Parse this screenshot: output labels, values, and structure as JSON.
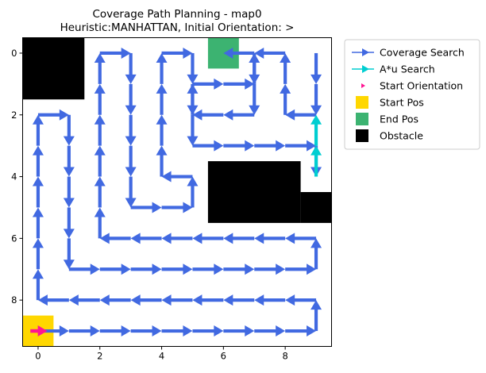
{
  "chart_data": {
    "type": "grid-path",
    "title": "Coverage Path Planning - map0",
    "subtitle": "Heuristic:MANHATTAN, Initial Orientation: >",
    "xlim": [
      -0.5,
      9.5
    ],
    "ylim": [
      9.5,
      -0.5
    ],
    "xticks": [
      0,
      2,
      4,
      6,
      8
    ],
    "yticks": [
      0,
      2,
      4,
      6,
      8
    ],
    "grid": false,
    "legend_position": "outside-right",
    "colors": {
      "coverage": "#4169E1",
      "astar": "#00CED1",
      "start_orientation": "#FF1493",
      "start_pos": "#FFD700",
      "end_pos": "#3CB371",
      "obstacle": "#000000"
    },
    "obstacles": [
      {
        "x0": -0.5,
        "y0": -0.5,
        "x1": 1.5,
        "y1": 1.5
      },
      {
        "x0": 5.5,
        "y0": 3.5,
        "x1": 8.5,
        "y1": 5.5
      },
      {
        "x0": 8.5,
        "y0": 4.5,
        "x1": 9.5,
        "y1": 5.5
      }
    ],
    "start_pos": [
      0,
      9
    ],
    "end_pos": [
      6,
      0
    ],
    "start_orientation": {
      "from": [
        -0.25,
        9
      ],
      "to": [
        0.3,
        9
      ]
    },
    "coverage_path": [
      [
        0,
        9
      ],
      [
        1,
        9
      ],
      [
        2,
        9
      ],
      [
        3,
        9
      ],
      [
        4,
        9
      ],
      [
        5,
        9
      ],
      [
        6,
        9
      ],
      [
        7,
        9
      ],
      [
        8,
        9
      ],
      [
        9,
        9
      ],
      [
        9,
        8
      ],
      [
        8,
        8
      ],
      [
        7,
        8
      ],
      [
        6,
        8
      ],
      [
        5,
        8
      ],
      [
        4,
        8
      ],
      [
        3,
        8
      ],
      [
        2,
        8
      ],
      [
        1,
        8
      ],
      [
        0,
        8
      ],
      [
        0,
        7
      ],
      [
        0,
        6
      ],
      [
        0,
        5
      ],
      [
        0,
        4
      ],
      [
        0,
        3
      ],
      [
        0,
        2
      ],
      [
        1,
        2
      ],
      [
        1,
        3
      ],
      [
        1,
        4
      ],
      [
        1,
        5
      ],
      [
        1,
        6
      ],
      [
        1,
        7
      ],
      [
        2,
        7
      ],
      [
        3,
        7
      ],
      [
        4,
        7
      ],
      [
        5,
        7
      ],
      [
        6,
        7
      ],
      [
        7,
        7
      ],
      [
        8,
        7
      ],
      [
        9,
        7
      ],
      [
        9,
        6
      ],
      [
        8,
        6
      ],
      [
        7,
        6
      ],
      [
        6,
        6
      ],
      [
        5,
        6
      ],
      [
        4,
        6
      ],
      [
        3,
        6
      ],
      [
        2,
        6
      ],
      [
        2,
        5
      ],
      [
        2,
        4
      ],
      [
        2,
        3
      ],
      [
        2,
        2
      ],
      [
        2,
        1
      ],
      [
        2,
        0
      ],
      [
        3,
        0
      ],
      [
        3,
        1
      ],
      [
        3,
        2
      ],
      [
        3,
        3
      ],
      [
        3,
        4
      ],
      [
        3,
        5
      ],
      [
        4,
        5
      ],
      [
        5,
        5
      ],
      [
        5,
        4
      ],
      [
        4,
        4
      ],
      [
        4,
        3
      ],
      [
        4,
        2
      ],
      [
        4,
        1
      ],
      [
        4,
        0
      ],
      [
        5,
        0
      ],
      [
        5,
        1
      ],
      [
        5,
        2
      ],
      [
        5,
        3
      ],
      [
        6,
        3
      ],
      [
        7,
        3
      ],
      [
        8,
        3
      ],
      [
        9,
        3
      ],
      [
        9,
        4
      ]
    ],
    "coverage_path_2": [
      [
        9,
        0
      ],
      [
        9,
        1
      ],
      [
        9,
        2
      ],
      [
        8,
        2
      ],
      [
        8,
        1
      ],
      [
        8,
        0
      ],
      [
        7,
        0
      ],
      [
        7,
        1
      ],
      [
        7,
        2
      ],
      [
        6,
        2
      ],
      [
        5,
        2
      ],
      [
        5,
        1
      ],
      [
        6,
        1
      ],
      [
        7,
        1
      ],
      [
        7,
        0
      ],
      [
        6,
        0
      ]
    ],
    "astar_path": [
      [
        9,
        4
      ],
      [
        9,
        3
      ],
      [
        9,
        2
      ]
    ],
    "legend": [
      {
        "key": "coverage",
        "label": "Coverage Search"
      },
      {
        "key": "astar",
        "label": "A*u Search"
      },
      {
        "key": "start_orientation",
        "label": "Start Orientation"
      },
      {
        "key": "start_pos",
        "label": "Start Pos"
      },
      {
        "key": "end_pos",
        "label": "End Pos"
      },
      {
        "key": "obstacle",
        "label": "Obstacle"
      }
    ]
  }
}
